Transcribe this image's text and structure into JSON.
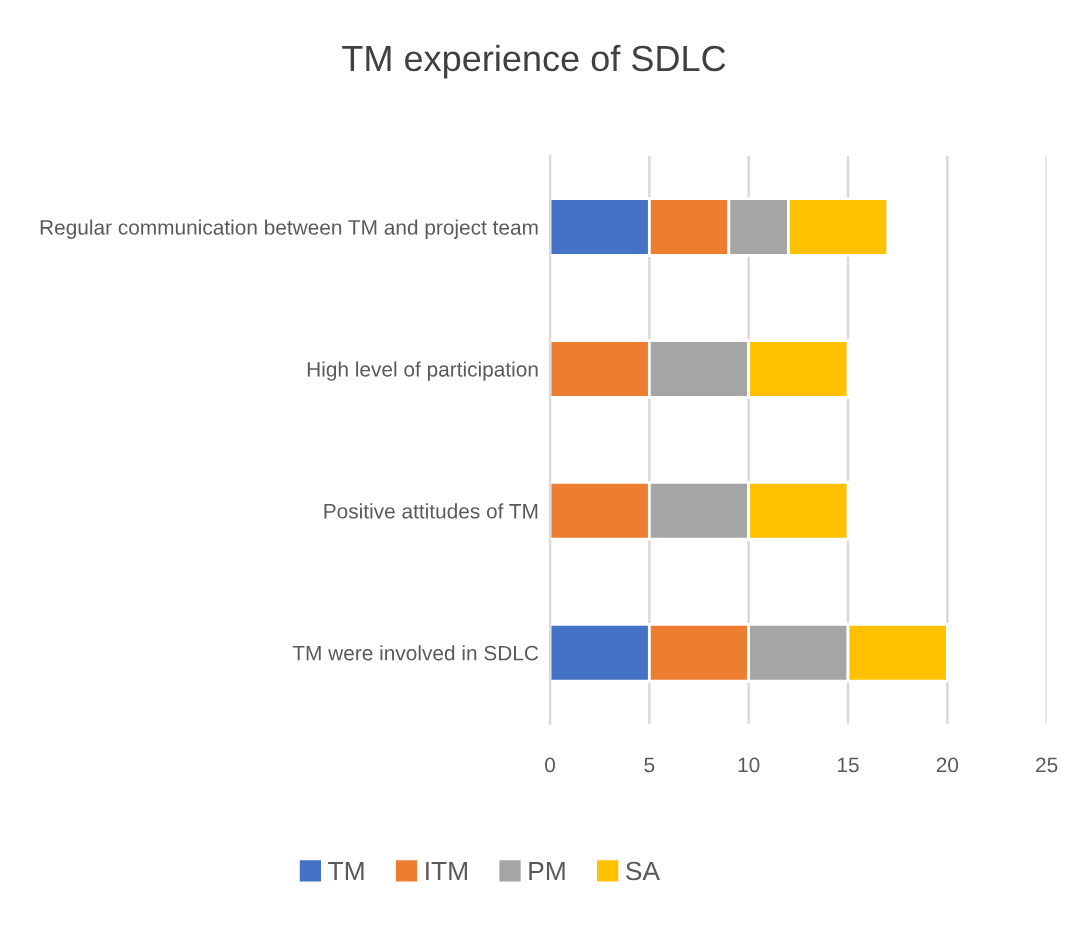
{
  "chart_data": {
    "type": "bar",
    "orientation": "horizontal",
    "stacked": true,
    "title": "TM experience of SDLC",
    "categories": [
      "Regular communication between TM and project team",
      "High level of participation",
      "Positive attitudes of TM",
      "TM were involved in SDLC"
    ],
    "series": [
      {
        "name": "TM",
        "color": "#4472c4",
        "values": [
          5,
          0,
          0,
          5
        ]
      },
      {
        "name": "ITM",
        "color": "#ed7d31",
        "values": [
          4,
          5,
          5,
          5
        ]
      },
      {
        "name": "PM",
        "color": "#a5a5a5",
        "values": [
          3,
          5,
          5,
          5
        ]
      },
      {
        "name": "SA",
        "color": "#ffc000",
        "values": [
          5,
          5,
          5,
          5
        ]
      }
    ],
    "xlim": [
      0,
      25
    ],
    "xticks": [
      0,
      5,
      10,
      15,
      20,
      25
    ],
    "grid": "x",
    "legend": "bottom"
  }
}
